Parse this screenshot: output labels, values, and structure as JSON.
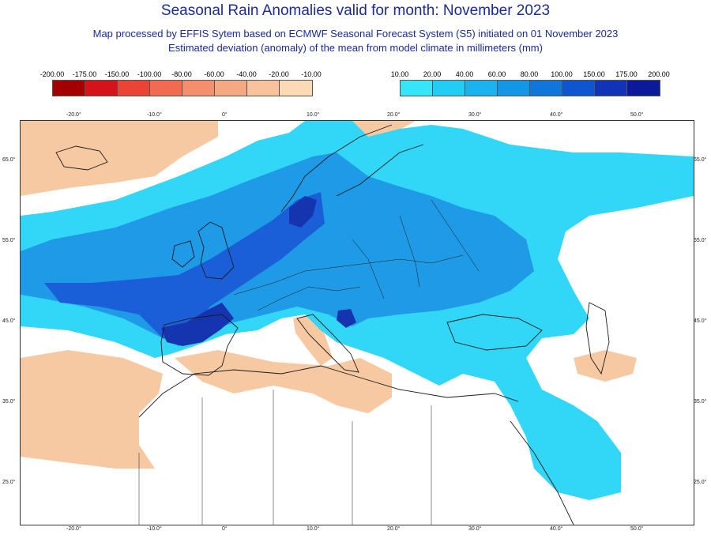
{
  "title": "Seasonal Rain Anomalies valid for month: November 2023",
  "subtitle1": "Map processed by EFFIS Sytem based on ECMWF Seasonal Forecast System (S5) initiated on 01 November 2023",
  "subtitle2": "Estimated deviation (anomaly) of the mean from model climate in millimeters (mm)",
  "legend_negative": {
    "labels": [
      "-200.00",
      "-175.00",
      "-150.00",
      "-100.00",
      "-80.00",
      "-60.00",
      "-40.00",
      "-20.00",
      "-10.00"
    ],
    "colors": [
      "#a50000",
      "#d4141a",
      "#ec4434",
      "#f26a50",
      "#f48e6c",
      "#f5a983",
      "#f8c39c",
      "#fbdab5"
    ]
  },
  "legend_positive": {
    "labels": [
      "10.00",
      "20.00",
      "40.00",
      "60.00",
      "80.00",
      "100.00",
      "150.00",
      "175.00",
      "200.00"
    ],
    "colors": [
      "#35e6fb",
      "#22cdf5",
      "#1ab3f0",
      "#1496e6",
      "#1076dc",
      "#0e55d0",
      "#1033b8",
      "#0a1a9a"
    ]
  },
  "lon_labels": [
    "-20.0°",
    "-10.0°",
    "0°",
    "10.0°",
    "20.0°",
    "30.0°",
    "40.0°",
    "50.0°"
  ],
  "lat_labels": [
    "65.0°",
    "55.0°",
    "45.0°",
    "35.0°",
    "25.0°"
  ],
  "colors": {
    "dry": "#f7c9a3",
    "wet_light": "#32d7f7",
    "wet_mid": "#1e9ae6",
    "wet_strong": "#1a5fd8",
    "wet_extreme": "#1535b0",
    "dry_strong": "#f4a882",
    "coast": "#1a1a1a"
  }
}
